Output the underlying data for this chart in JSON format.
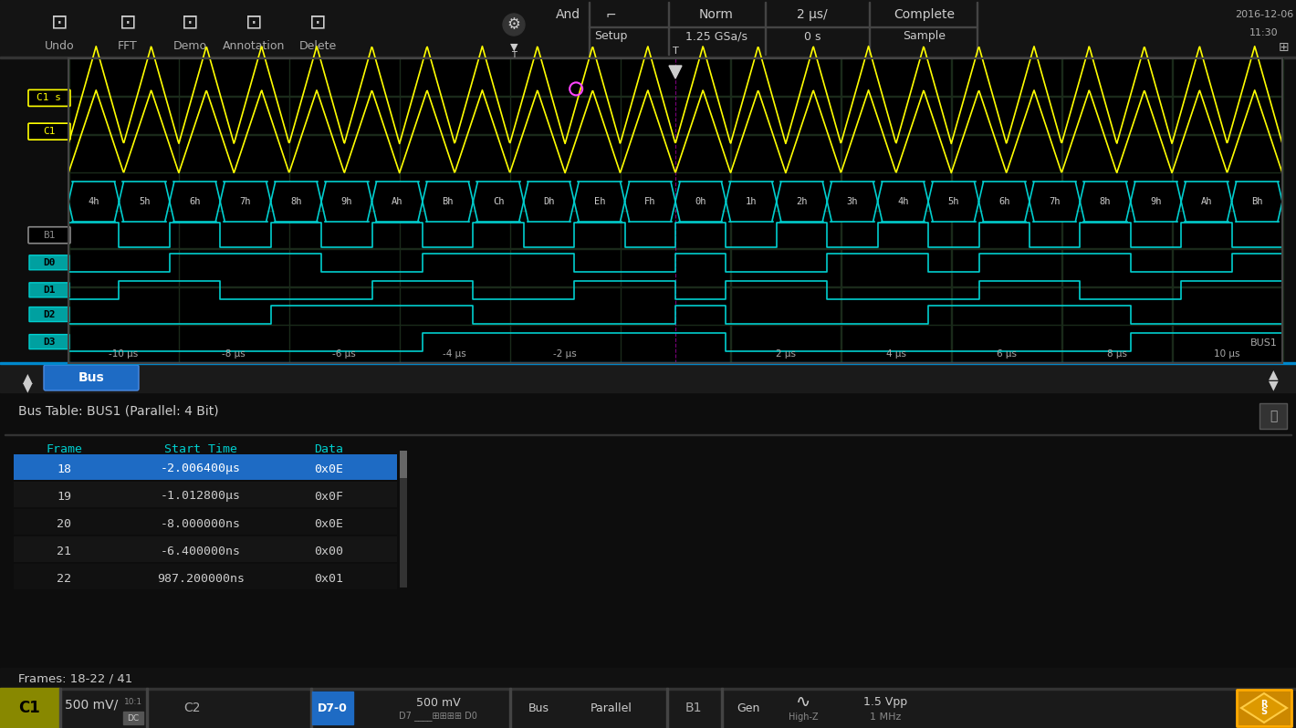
{
  "bg_color": "#0a0a0a",
  "screen_bg": "#000000",
  "toolbar_bg": "#1a1a1a",
  "toolbar_border": "#2a2a2a",
  "grid_color": "#1a3a1a",
  "grid_color2": "#0d200d",
  "toolbar_items": [
    "Undo",
    "FFT",
    "Demo",
    "Annotation",
    "Delete"
  ],
  "header_items": [
    "And",
    "⌏",
    "Norm",
    "2 μs/",
    "Complete"
  ],
  "header_items2": [
    "Setup",
    "1.25 GSa/s",
    "0 s",
    "Sample"
  ],
  "date_str": "2016-12-06\n11:30",
  "scope_x_labels": [
    "-10 μs",
    "-8 μs",
    "-6 μs",
    "-4 μs",
    "-2 μs",
    "",
    "2 μs",
    "4 μs",
    "6 μs",
    "8 μs",
    "10 μs"
  ],
  "bus_labels": [
    "4h",
    "5h",
    "6h",
    "7h",
    "8h",
    "9h",
    "Ah",
    "Bh",
    "Ch",
    "Dh",
    "Eh",
    "Fh",
    "0h",
    "1h",
    "2h",
    "3h",
    "4h",
    "5h",
    "6h",
    "7h",
    "8h",
    "9h",
    "Ah",
    "Bh"
  ],
  "yellow_color": "#ffff00",
  "cyan_color": "#00e5e5",
  "cyan_dark": "#00b0b0",
  "magenta_color": "#ff00ff",
  "blue_color": "#0078d4",
  "label_cyan": "#00cfcf",
  "bottom_bar_bg": "#1a1a1a",
  "bottom_bar_c1_bg": "#aaaa00",
  "bottom_bar_d70_bg": "#1e6bc4",
  "status_bg": "#181818",
  "table_header_color": "#00cfcf",
  "table_row_selected_bg": "#1e6bc4",
  "table_row_selected_fg": "#ffffff",
  "table_row_normal_fg": "#cccccc",
  "table_dark_row_bg": "#111111",
  "table_alt_row_bg": "#1a1a1a",
  "frame_data": [
    {
      "frame": "18",
      "time": "-2.006400μs",
      "data": "0x0E",
      "selected": true
    },
    {
      "frame": "19",
      "time": "-1.012800μs",
      "data": "0x0F",
      "selected": false
    },
    {
      "frame": "20",
      "time": "-8.000000ns",
      "data": "0x0E",
      "selected": false
    },
    {
      "frame": "21",
      "time": "-6.400000ns",
      "data": "0x00",
      "selected": false
    },
    {
      "frame": "22",
      "time": "987.200000ns",
      "data": "0x01",
      "selected": false
    }
  ],
  "frames_status": "Frames: 18-22 / 41",
  "bus_table_title": "Bus Table: BUS1 (Parallel: 4 Bit)"
}
